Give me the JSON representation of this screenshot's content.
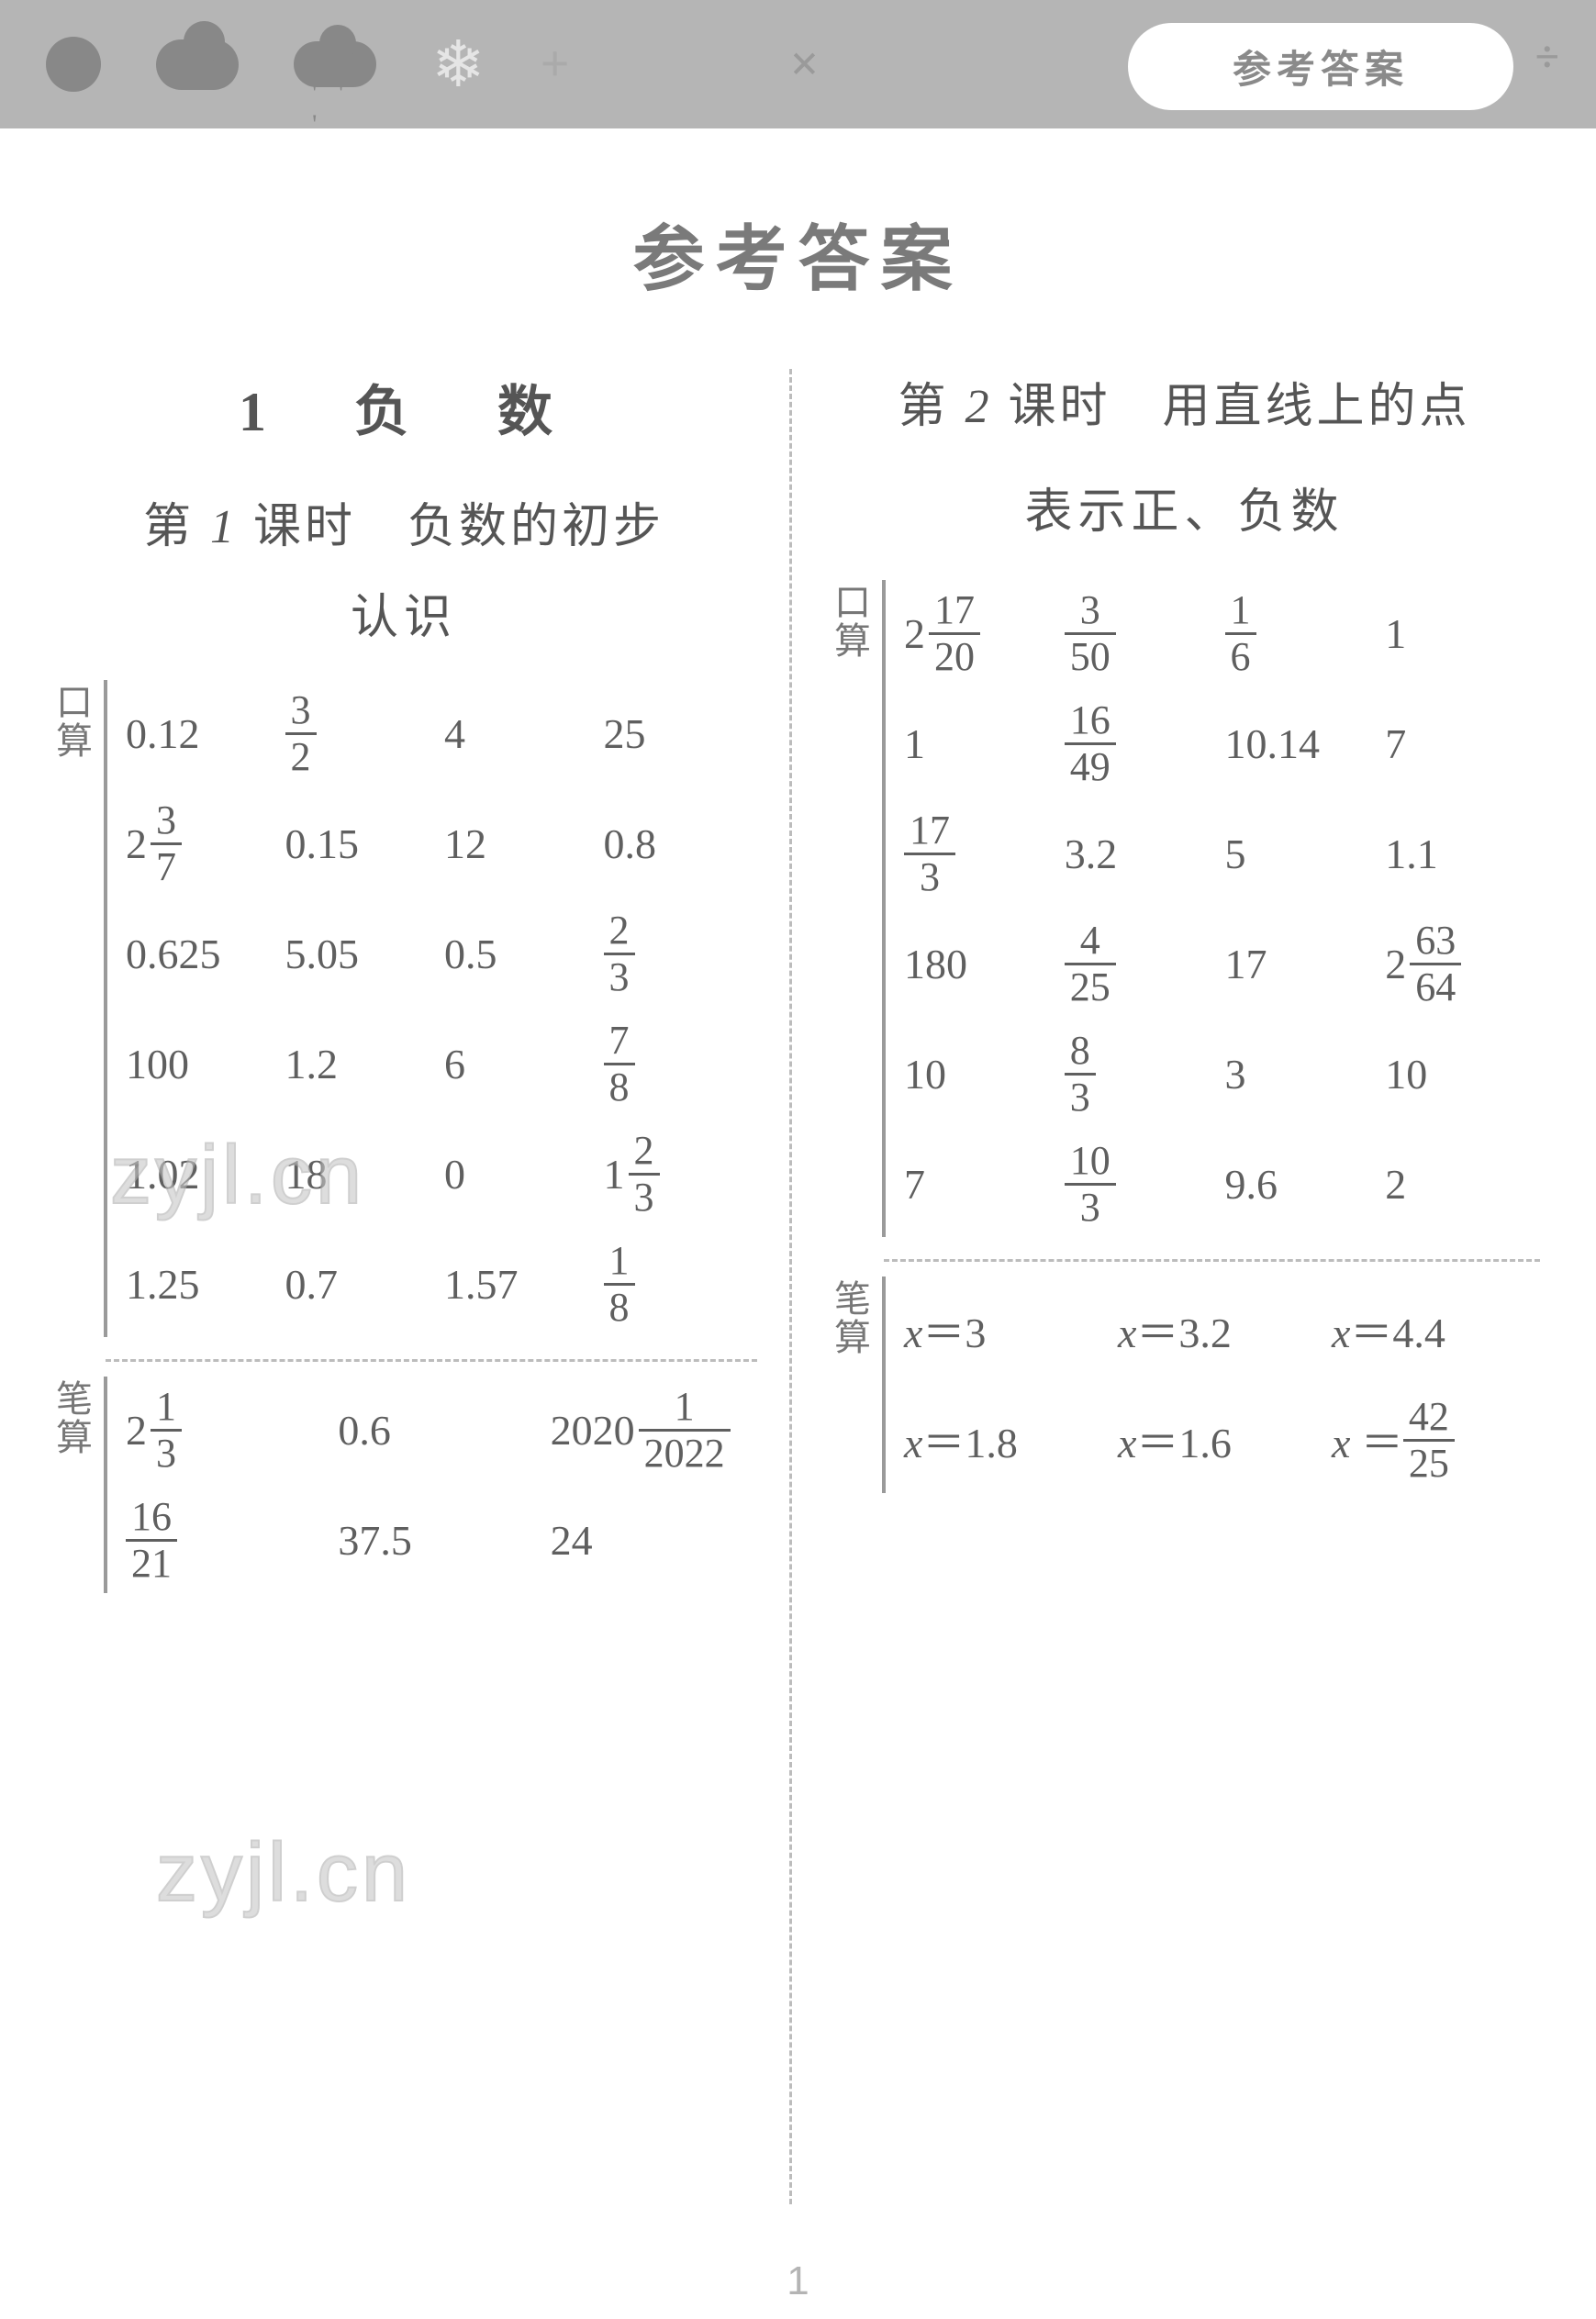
{
  "header": {
    "oval_label": "参考答案"
  },
  "main_title": "参考答案",
  "watermark_text": "zyjl.cn",
  "page_number": "1",
  "left": {
    "chapter": "1　负　数",
    "lesson_title_prefix": "第 ",
    "lesson_title_num": "1",
    "lesson_title_suffix": " 课时　负数的初步",
    "lesson_sub": "认识",
    "kousuan_label": "口算",
    "bisuan_label": "笔算",
    "kousuan_rows": [
      [
        {
          "t": "plain",
          "v": "0.12"
        },
        {
          "t": "frac",
          "n": "3",
          "d": "2"
        },
        {
          "t": "plain",
          "v": "4"
        },
        {
          "t": "plain",
          "v": "25"
        }
      ],
      [
        {
          "t": "mixed",
          "w": "2",
          "n": "3",
          "d": "7"
        },
        {
          "t": "plain",
          "v": "0.15"
        },
        {
          "t": "plain",
          "v": "12"
        },
        {
          "t": "plain",
          "v": "0.8"
        }
      ],
      [
        {
          "t": "plain",
          "v": "0.625"
        },
        {
          "t": "plain",
          "v": "5.05"
        },
        {
          "t": "plain",
          "v": "0.5"
        },
        {
          "t": "frac",
          "n": "2",
          "d": "3"
        }
      ],
      [
        {
          "t": "plain",
          "v": "100"
        },
        {
          "t": "plain",
          "v": "1.2"
        },
        {
          "t": "plain",
          "v": "6"
        },
        {
          "t": "frac",
          "n": "7",
          "d": "8"
        }
      ],
      [
        {
          "t": "plain",
          "v": "1.02"
        },
        {
          "t": "plain",
          "v": "18"
        },
        {
          "t": "plain",
          "v": "0"
        },
        {
          "t": "mixed",
          "w": "1",
          "n": "2",
          "d": "3"
        }
      ],
      [
        {
          "t": "plain",
          "v": "1.25"
        },
        {
          "t": "plain",
          "v": "0.7"
        },
        {
          "t": "plain",
          "v": "1.57"
        },
        {
          "t": "frac",
          "n": "1",
          "d": "8"
        }
      ]
    ],
    "bisuan_rows": [
      [
        {
          "t": "mixed",
          "w": "2",
          "n": "1",
          "d": "3"
        },
        {
          "t": "plain",
          "v": "0.6"
        },
        {
          "t": "mixed",
          "w": "2020",
          "n": "1",
          "d": "2022"
        }
      ],
      [
        {
          "t": "frac",
          "n": "16",
          "d": "21"
        },
        {
          "t": "plain",
          "v": "37.5"
        },
        {
          "t": "plain",
          "v": "24"
        }
      ]
    ]
  },
  "right": {
    "lesson_title_prefix": "第 ",
    "lesson_title_num": "2",
    "lesson_title_suffix": " 课时　用直线上的点",
    "lesson_sub": "表示正、负数",
    "kousuan_label": "口算",
    "bisuan_label": "笔算",
    "kousuan_rows": [
      [
        {
          "t": "mixed",
          "w": "2",
          "n": "17",
          "d": "20"
        },
        {
          "t": "frac",
          "n": "3",
          "d": "50"
        },
        {
          "t": "frac",
          "n": "1",
          "d": "6"
        },
        {
          "t": "plain",
          "v": "1"
        }
      ],
      [
        {
          "t": "plain",
          "v": "1"
        },
        {
          "t": "frac",
          "n": "16",
          "d": "49"
        },
        {
          "t": "plain",
          "v": "10.14"
        },
        {
          "t": "plain",
          "v": "7"
        }
      ],
      [
        {
          "t": "frac",
          "n": "17",
          "d": "3"
        },
        {
          "t": "plain",
          "v": "3.2"
        },
        {
          "t": "plain",
          "v": "5"
        },
        {
          "t": "plain",
          "v": "1.1"
        }
      ],
      [
        {
          "t": "plain",
          "v": "180"
        },
        {
          "t": "frac",
          "n": "4",
          "d": "25"
        },
        {
          "t": "plain",
          "v": "17"
        },
        {
          "t": "mixed",
          "w": "2",
          "n": "63",
          "d": "64"
        }
      ],
      [
        {
          "t": "plain",
          "v": "10"
        },
        {
          "t": "frac",
          "n": "8",
          "d": "3"
        },
        {
          "t": "plain",
          "v": "3"
        },
        {
          "t": "plain",
          "v": "10"
        }
      ],
      [
        {
          "t": "plain",
          "v": "7"
        },
        {
          "t": "frac",
          "n": "10",
          "d": "3"
        },
        {
          "t": "plain",
          "v": "9.6"
        },
        {
          "t": "plain",
          "v": "2"
        }
      ]
    ],
    "bisuan_rows": [
      [
        {
          "t": "xeq",
          "v": "3"
        },
        {
          "t": "xeq",
          "v": "3.2"
        },
        {
          "t": "xeq",
          "v": "4.4"
        }
      ],
      [
        {
          "t": "xeq",
          "v": "1.8"
        },
        {
          "t": "xeq",
          "v": "1.6"
        },
        {
          "t": "xeqfrac",
          "n": "42",
          "d": "25"
        }
      ]
    ]
  },
  "colors": {
    "header_bg": "#b5b5b5",
    "text_main": "#6a6a6a",
    "text_dark": "#555555",
    "divider": "#bcbcbc",
    "rail": "#9a9a9a",
    "watermark": "#c8c8c8"
  }
}
